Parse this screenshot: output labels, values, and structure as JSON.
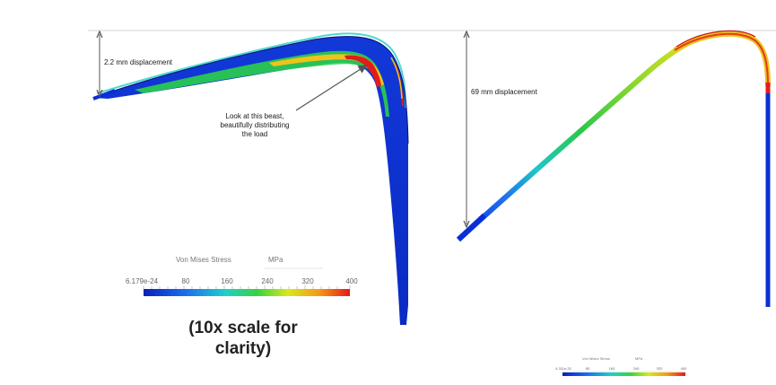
{
  "left_panel": {
    "displacement_label": "2.2 mm displacement",
    "annotation": [
      "Look at this beast,",
      "beautifully distributing",
      "the load"
    ],
    "legend": {
      "title": "Von Mises Stress",
      "unit": "MPa",
      "ticks": [
        "6.179e-24",
        "80",
        "160",
        "240",
        "320",
        "400"
      ]
    },
    "caption": [
      "(10x scale for",
      "clarity)"
    ]
  },
  "right_panel": {
    "displacement_label": "69  mm displacement",
    "legend": {
      "title": "Von Mises Stress",
      "unit": "MPa",
      "ticks": [
        "4.311e-32",
        "80",
        "160",
        "240",
        "320",
        "400"
      ]
    }
  },
  "colors": {
    "low_stress": "#0a2fd6",
    "mid_stress": "#22c94a",
    "high_stress": "#e31b1b",
    "arrow": "#555555",
    "divider": "#cccccc"
  }
}
